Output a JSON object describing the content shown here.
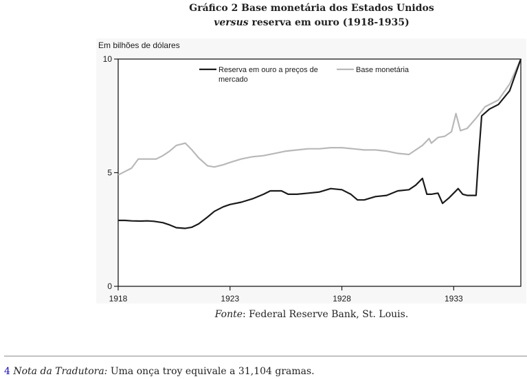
{
  "header": {
    "title_line1": "Gráfico 2 Base monetária dos Estados Unidos",
    "title_line2_italic": "versus",
    "title_line2_rest": " reserva em ouro (1918-1935)"
  },
  "caption": {
    "source_label": "Fonte",
    "source_text": ": Federal Reserve Bank, St. Louis."
  },
  "footnote": {
    "number": "4",
    "label": "Nota da Tradutora:",
    "text": " Uma onça troy equivale a 31,104 gramas."
  },
  "chart_data": {
    "type": "line",
    "title": "",
    "ylabel": "Em bilhões de dólares",
    "xlabel": "",
    "xlim": [
      1918,
      1936
    ],
    "ylim": [
      0,
      10
    ],
    "x_ticks": [
      1918,
      1923,
      1928,
      1933
    ],
    "y_ticks": [
      0,
      5,
      10
    ],
    "legend_position": "top-left inside",
    "grid": false,
    "colors": {
      "gold": "#1a1a1a",
      "base": "#b8b8b8",
      "frame": "#1a1a1a"
    },
    "series": [
      {
        "name": "Reserva em ouro a preços de mercado",
        "key": "gold",
        "points": [
          [
            1918.0,
            2.9
          ],
          [
            1918.3,
            2.9
          ],
          [
            1918.6,
            2.88
          ],
          [
            1919.0,
            2.87
          ],
          [
            1919.3,
            2.88
          ],
          [
            1919.6,
            2.86
          ],
          [
            1920.0,
            2.8
          ],
          [
            1920.3,
            2.7
          ],
          [
            1920.6,
            2.58
          ],
          [
            1921.0,
            2.55
          ],
          [
            1921.3,
            2.6
          ],
          [
            1921.6,
            2.75
          ],
          [
            1922.0,
            3.05
          ],
          [
            1922.3,
            3.3
          ],
          [
            1922.7,
            3.5
          ],
          [
            1923.0,
            3.6
          ],
          [
            1923.5,
            3.7
          ],
          [
            1924.0,
            3.85
          ],
          [
            1924.5,
            4.05
          ],
          [
            1924.8,
            4.2
          ],
          [
            1925.3,
            4.2
          ],
          [
            1925.6,
            4.05
          ],
          [
            1926.0,
            4.05
          ],
          [
            1926.5,
            4.1
          ],
          [
            1927.0,
            4.15
          ],
          [
            1927.5,
            4.3
          ],
          [
            1928.0,
            4.25
          ],
          [
            1928.4,
            4.05
          ],
          [
            1928.7,
            3.8
          ],
          [
            1929.0,
            3.8
          ],
          [
            1929.5,
            3.95
          ],
          [
            1930.0,
            4.0
          ],
          [
            1930.5,
            4.2
          ],
          [
            1931.0,
            4.25
          ],
          [
            1931.3,
            4.45
          ],
          [
            1931.6,
            4.75
          ],
          [
            1931.8,
            4.05
          ],
          [
            1932.0,
            4.05
          ],
          [
            1932.3,
            4.1
          ],
          [
            1932.5,
            3.65
          ],
          [
            1932.8,
            3.9
          ],
          [
            1933.0,
            4.1
          ],
          [
            1933.2,
            4.3
          ],
          [
            1933.4,
            4.05
          ],
          [
            1933.6,
            4.0
          ],
          [
            1933.9,
            4.0
          ],
          [
            1934.0,
            4.0
          ],
          [
            1934.1,
            5.5
          ],
          [
            1934.25,
            7.5
          ],
          [
            1934.6,
            7.8
          ],
          [
            1935.0,
            8.0
          ],
          [
            1935.5,
            8.6
          ],
          [
            1936.0,
            10.0
          ]
        ]
      },
      {
        "name": "Base monetária",
        "key": "base",
        "points": [
          [
            1918.0,
            4.9
          ],
          [
            1918.3,
            5.05
          ],
          [
            1918.6,
            5.2
          ],
          [
            1918.9,
            5.6
          ],
          [
            1919.3,
            5.6
          ],
          [
            1919.7,
            5.6
          ],
          [
            1920.0,
            5.75
          ],
          [
            1920.3,
            5.95
          ],
          [
            1920.6,
            6.2
          ],
          [
            1921.0,
            6.3
          ],
          [
            1921.3,
            6.0
          ],
          [
            1921.6,
            5.65
          ],
          [
            1922.0,
            5.3
          ],
          [
            1922.3,
            5.25
          ],
          [
            1922.7,
            5.35
          ],
          [
            1923.0,
            5.45
          ],
          [
            1923.5,
            5.6
          ],
          [
            1924.0,
            5.7
          ],
          [
            1924.5,
            5.75
          ],
          [
            1925.0,
            5.85
          ],
          [
            1925.5,
            5.95
          ],
          [
            1926.0,
            6.0
          ],
          [
            1926.5,
            6.05
          ],
          [
            1927.0,
            6.05
          ],
          [
            1927.5,
            6.1
          ],
          [
            1928.0,
            6.1
          ],
          [
            1928.5,
            6.05
          ],
          [
            1929.0,
            6.0
          ],
          [
            1929.5,
            6.0
          ],
          [
            1930.0,
            5.95
          ],
          [
            1930.5,
            5.85
          ],
          [
            1931.0,
            5.8
          ],
          [
            1931.3,
            6.0
          ],
          [
            1931.6,
            6.2
          ],
          [
            1931.9,
            6.5
          ],
          [
            1932.0,
            6.3
          ],
          [
            1932.3,
            6.55
          ],
          [
            1932.6,
            6.6
          ],
          [
            1932.9,
            6.8
          ],
          [
            1933.1,
            7.6
          ],
          [
            1933.3,
            6.85
          ],
          [
            1933.6,
            6.95
          ],
          [
            1934.0,
            7.4
          ],
          [
            1934.4,
            7.9
          ],
          [
            1935.0,
            8.2
          ],
          [
            1935.5,
            8.9
          ],
          [
            1936.0,
            10.0
          ]
        ]
      }
    ]
  }
}
